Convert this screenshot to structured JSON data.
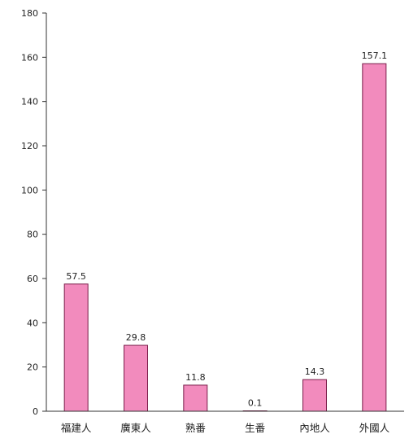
{
  "chart_data": {
    "type": "bar",
    "categories": [
      "福建人",
      "廣東人",
      "熟番",
      "生番",
      "內地人",
      "外國人"
    ],
    "values": [
      57.5,
      29.8,
      11.8,
      0.1,
      14.3,
      157.1
    ],
    "value_labels": [
      "57.5",
      "29.8",
      "11.8",
      "0.1",
      "14.3",
      "157.1"
    ],
    "ylim": [
      0,
      180
    ],
    "yticks": [
      0,
      20,
      40,
      60,
      80,
      100,
      120,
      140,
      160,
      180
    ],
    "grid": false,
    "legend": "none",
    "bar_color": "#f28bbd",
    "bar_edge_color": "#7a1e4a"
  }
}
